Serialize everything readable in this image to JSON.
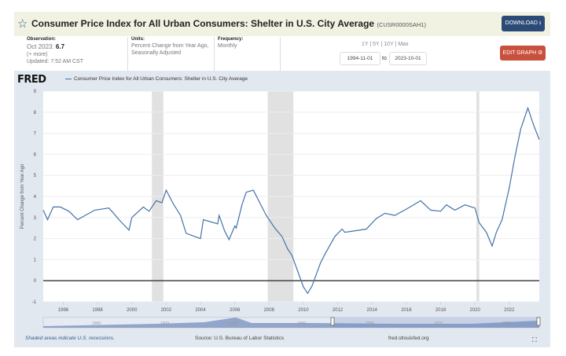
{
  "header": {
    "title": "Consumer Price Index for All Urban Consumers: Shelter in U.S. City Average",
    "series_id": "(CUSR0000SAH1)",
    "download": "DOWNLOAD",
    "edit": "EDIT GRAPH"
  },
  "meta": {
    "obs_label": "Observation:",
    "obs_date": "Oct 2023:",
    "obs_value": "6.7",
    "more": "(+ more)",
    "updated": "Updated: 7:52 AM CST",
    "units_label": "Units:",
    "units1": "Percent Change from Year Ago,",
    "units2": "Seasonally Adjusted",
    "freq_label": "Frequency:",
    "freq": "Monthly"
  },
  "range": {
    "presets": "1Y | 5Y | 10Y | Max",
    "start": "1994-11-01",
    "to": "to",
    "end": "2023-10-01"
  },
  "footer": {
    "note": "Shaded areas indicate U.S. recessions.",
    "source": "Source: U.S. Bureau of Labor Statistics",
    "site": "fred.stlouisfed.org"
  },
  "brand": "FRED",
  "colors": {
    "line": "#4572a7",
    "recession": "#e1e1e1",
    "panel": "#e1e8ef",
    "download": "#2c4a77",
    "edit": "#c9503d"
  },
  "navigator_labels": [
    "1960",
    "1970",
    "1980",
    "1990",
    "2000",
    "2010",
    "2020"
  ],
  "chart_data": {
    "type": "line",
    "ylabel": "Percent Change from Year Ago",
    "ylim": [
      -1,
      9
    ],
    "yticks": [
      -1,
      0,
      1,
      2,
      3,
      4,
      5,
      6,
      7,
      8,
      9
    ],
    "xlim": [
      "1994-11",
      "2023-10"
    ],
    "xticks": [
      "1996",
      "1998",
      "2000",
      "2002",
      "2004",
      "2006",
      "2008",
      "2010",
      "2012",
      "2014",
      "2016",
      "2018",
      "2020",
      "2022"
    ],
    "grid": true,
    "legend": "top-left",
    "recessions": [
      [
        "2001-03",
        "2001-11"
      ],
      [
        "2007-12",
        "2009-06"
      ],
      [
        "2020-02",
        "2020-04"
      ]
    ],
    "series": [
      {
        "name": "Consumer Price Index for All Urban Consumers: Shelter in U.S. City Average",
        "points": [
          [
            "1994-11",
            3.35
          ],
          [
            "1995-02",
            2.9
          ],
          [
            "1995-06",
            3.5
          ],
          [
            "1995-11",
            3.5
          ],
          [
            "1996-05",
            3.3
          ],
          [
            "1996-11",
            2.9
          ],
          [
            "1997-11",
            3.35
          ],
          [
            "1998-09",
            3.45
          ],
          [
            "1999-04",
            2.9
          ],
          [
            "1999-11",
            2.4
          ],
          [
            "2000-01",
            3.0
          ],
          [
            "2000-09",
            3.5
          ],
          [
            "2001-01",
            3.3
          ],
          [
            "2001-06",
            3.8
          ],
          [
            "2001-10",
            3.7
          ],
          [
            "2002-01",
            4.3
          ],
          [
            "2002-06",
            3.65
          ],
          [
            "2002-11",
            3.1
          ],
          [
            "2003-03",
            2.25
          ],
          [
            "2004-01",
            2.0
          ],
          [
            "2004-03",
            2.9
          ],
          [
            "2005-01",
            2.7
          ],
          [
            "2005-02",
            3.1
          ],
          [
            "2005-06",
            2.35
          ],
          [
            "2005-09",
            1.95
          ],
          [
            "2006-01",
            2.6
          ],
          [
            "2006-02",
            2.5
          ],
          [
            "2006-06",
            3.6
          ],
          [
            "2006-09",
            4.2
          ],
          [
            "2007-02",
            4.3
          ],
          [
            "2007-08",
            3.5
          ],
          [
            "2007-11",
            3.1
          ],
          [
            "2008-05",
            2.5
          ],
          [
            "2008-10",
            2.1
          ],
          [
            "2009-02",
            1.5
          ],
          [
            "2009-05",
            1.2
          ],
          [
            "2010-01",
            -0.3
          ],
          [
            "2010-04",
            -0.6
          ],
          [
            "2010-07",
            -0.25
          ],
          [
            "2011-01",
            0.85
          ],
          [
            "2011-04",
            1.25
          ],
          [
            "2011-11",
            2.1
          ],
          [
            "2012-04",
            2.45
          ],
          [
            "2012-06",
            2.3
          ],
          [
            "2013-09",
            2.45
          ],
          [
            "2014-04",
            2.95
          ],
          [
            "2014-10",
            3.2
          ],
          [
            "2015-05",
            3.1
          ],
          [
            "2016-01",
            3.4
          ],
          [
            "2016-11",
            3.8
          ],
          [
            "2017-06",
            3.35
          ],
          [
            "2018-01",
            3.3
          ],
          [
            "2018-05",
            3.6
          ],
          [
            "2018-11",
            3.35
          ],
          [
            "2019-06",
            3.6
          ],
          [
            "2020-01",
            3.45
          ],
          [
            "2020-04",
            2.75
          ],
          [
            "2020-09",
            2.3
          ],
          [
            "2021-01",
            1.65
          ],
          [
            "2021-04",
            2.3
          ],
          [
            "2021-08",
            2.9
          ],
          [
            "2022-01",
            4.4
          ],
          [
            "2022-05",
            5.9
          ],
          [
            "2022-09",
            7.2
          ],
          [
            "2023-02",
            8.2
          ],
          [
            "2023-06",
            7.4
          ],
          [
            "2023-10",
            6.7
          ]
        ]
      }
    ]
  }
}
